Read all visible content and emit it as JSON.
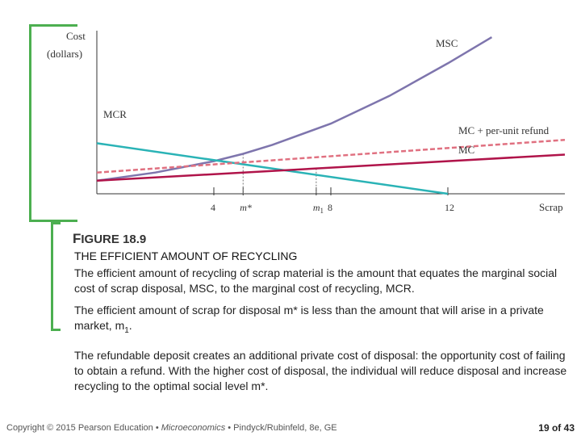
{
  "chart_data": {
    "type": "line",
    "ylabel_line1": "Cost",
    "ylabel_line2": "(dollars)",
    "xlabel": "Scrap",
    "xlim": [
      0,
      16
    ],
    "ylim": [
      0,
      10
    ],
    "ticks": [
      {
        "x": 4,
        "label": "4"
      },
      {
        "x": 5,
        "label": "m*"
      },
      {
        "x": 7.5,
        "label": "m1"
      },
      {
        "x": 8,
        "label": "8"
      },
      {
        "x": 12,
        "label": "12"
      }
    ],
    "series": [
      {
        "name": "MSC",
        "color": "#7e75ad",
        "style": "solid",
        "points": [
          [
            0,
            0.8
          ],
          [
            2,
            1.3
          ],
          [
            4,
            2.0
          ],
          [
            5,
            2.45
          ],
          [
            6,
            3.0
          ],
          [
            8,
            4.3
          ],
          [
            10,
            6.0
          ],
          [
            12,
            8.0
          ],
          [
            13.5,
            9.6
          ]
        ]
      },
      {
        "name": "MCR",
        "color": "#2ab3b6",
        "style": "solid",
        "points": [
          [
            0,
            3.1
          ],
          [
            12,
            0
          ]
        ]
      },
      {
        "name": "MC + per-unit refund",
        "color": "#e07080",
        "style": "dashed",
        "points": [
          [
            0,
            1.3
          ],
          [
            16,
            3.3
          ]
        ]
      },
      {
        "name": "MC",
        "color": "#b0144a",
        "style": "solid",
        "points": [
          [
            0,
            0.8
          ],
          [
            16,
            2.4
          ]
        ]
      }
    ],
    "dropline_points": [
      [
        5,
        2.45
      ],
      [
        7.5,
        1.55
      ]
    ],
    "grid": false
  },
  "figure": {
    "label_lead": "F",
    "label_rest": "IGURE 18.9",
    "title": "THE EFFICIENT AMOUNT OF RECYCLING",
    "para1": "The efficient amount of recycling of scrap material is the amount that equates the marginal social cost of scrap disposal, MSC, to the marginal cost of recycling, MCR.",
    "para2_a": "The efficient amount of scrap for disposal m* is less than the amount that will arise in a private market, m",
    "para2_sub": "1",
    "para2_b": ".",
    "para3": "The refundable deposit creates an additional private cost of disposal: the opportunity cost of failing to obtain a refund. With the higher cost of disposal, the individual will reduce disposal and increase recycling to the optimal social level m*."
  },
  "footer": {
    "copyright": "Copyright © 2015 Pearson Education • ",
    "book": "Microeconomics",
    "rest": " • Pindyck/Rubinfeld, 8e, GE",
    "page": "19 of 43"
  }
}
